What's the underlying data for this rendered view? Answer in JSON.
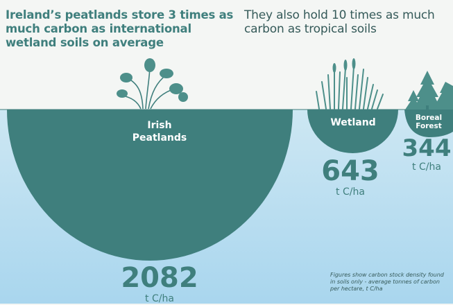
{
  "headline_left": "Ireland’s peatlands store 3 times as much carbon as international wetland soils on average",
  "headline_right": "They also hold 10 times as much carbon as tropical soils",
  "colors": {
    "background": "#f4f6f4",
    "soil_gradient_top": "#cde7f3",
    "soil_gradient_bottom": "#a9d6ee",
    "teal": "#3f7f7d",
    "dark_text": "#355a59",
    "plant": "#4d8f8a"
  },
  "icons": [
    "plant-icon",
    "reed-grass-icon",
    "fir-tree-icon"
  ],
  "chart_data": {
    "type": "bubble",
    "unit": "t C/ha",
    "categories": [
      "Irish Peatlands",
      "Wetland",
      "Boreal Forest"
    ],
    "values": [
      2082,
      643,
      344
    ],
    "labels": [
      {
        "line1": "Irish",
        "line2": "Peatlands"
      },
      {
        "line1": "Wetland",
        "line2": ""
      },
      {
        "line1": "Boreal",
        "line2": "Forest"
      }
    ],
    "value_labels": [
      "2082",
      "643",
      "344"
    ],
    "unit_labels": [
      "t C/ha",
      "t C/ha",
      "t C/ha"
    ],
    "footnote": "Figures show carbon stock density found in soils only - average tonnes of carbon per hectare, t C/ha"
  }
}
